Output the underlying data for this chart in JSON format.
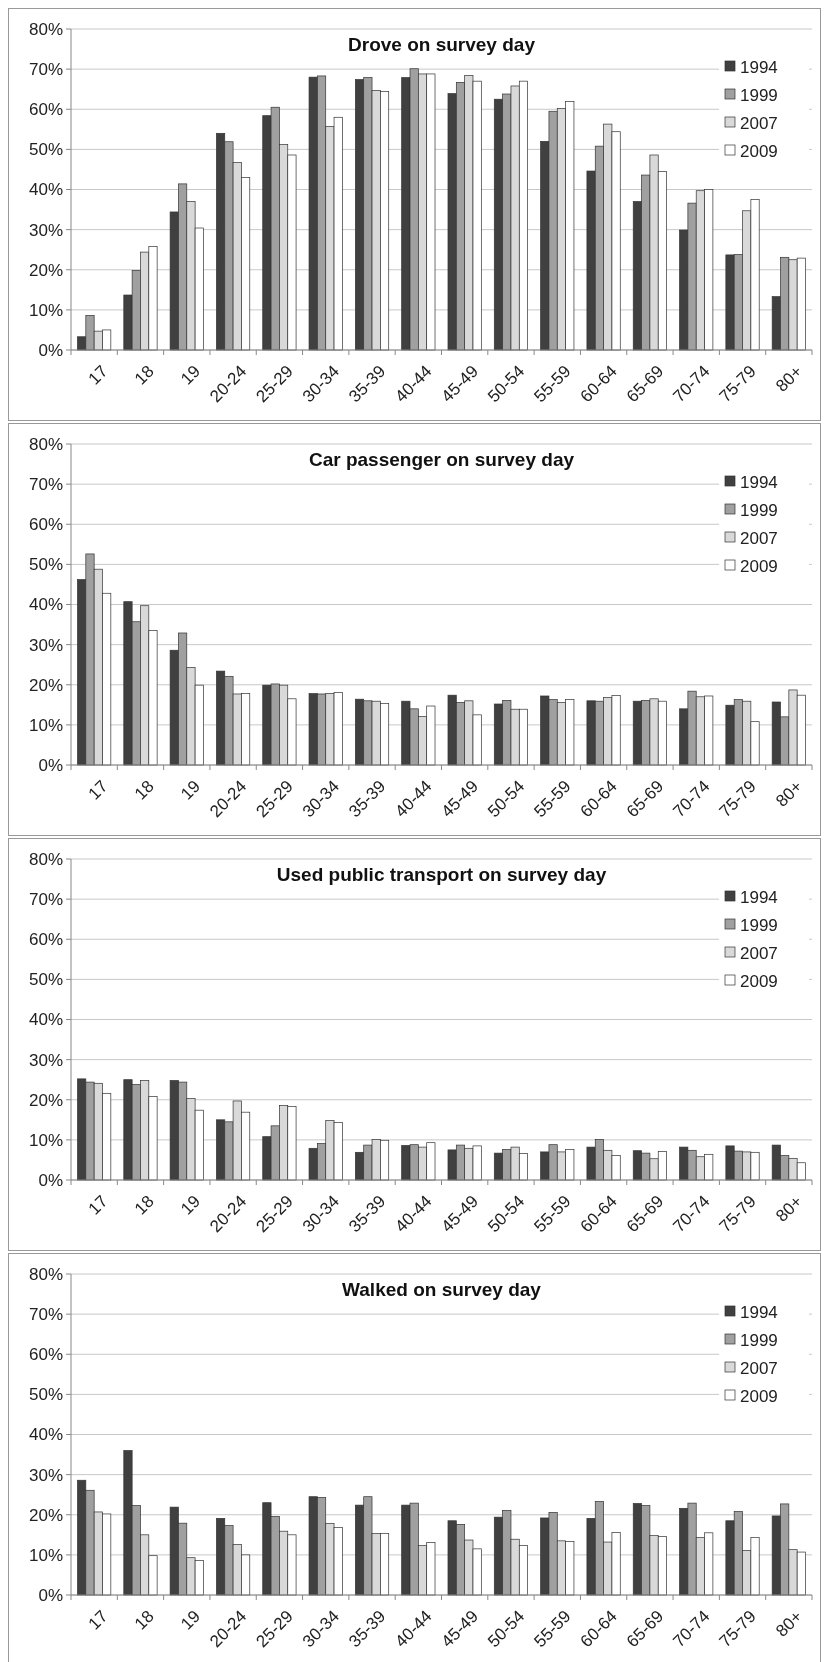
{
  "chart_data": [
    {
      "type": "bar",
      "title": "Drove on survey day",
      "categories": [
        "17",
        "18",
        "19",
        "20-24",
        "25-29",
        "30-34",
        "35-39",
        "40-44",
        "45-49",
        "50-54",
        "55-59",
        "60-64",
        "65-69",
        "70-74",
        "75-79",
        "80+"
      ],
      "ylim": [
        0,
        80
      ],
      "yticks": [
        {
          "value": 0,
          "label": "0%"
        },
        {
          "value": 10,
          "label": "10%"
        },
        {
          "value": 20,
          "label": "20%"
        },
        {
          "value": 30,
          "label": "30%"
        },
        {
          "value": 40,
          "label": "40%"
        },
        {
          "value": 50,
          "label": "50%"
        },
        {
          "value": 60,
          "label": "60%"
        },
        {
          "value": 70,
          "label": "70%"
        },
        {
          "value": 80,
          "label": "80%"
        }
      ],
      "grid": "y",
      "legend": "top right",
      "series": [
        {
          "name": "1994",
          "color": "#404040",
          "values": [
            3.3,
            13.7,
            34.4,
            54,
            58.4,
            68,
            67.4,
            67.9,
            63.9,
            62.5,
            52,
            44.6,
            37,
            29.9,
            23.7,
            13.3
          ]
        },
        {
          "name": "1999",
          "color": "#a0a0a0",
          "values": [
            8.6,
            19.8,
            41.4,
            51.9,
            60.5,
            68.3,
            67.9,
            70.1,
            66.7,
            63.8,
            59.5,
            50.8,
            43.6,
            36.6,
            23.8,
            23.1
          ]
        },
        {
          "name": "2007",
          "color": "#d9d9d9",
          "values": [
            4.7,
            24.4,
            37,
            46.7,
            51.2,
            55.7,
            64.7,
            68.8,
            68.4,
            65.8,
            60.2,
            56.3,
            48.6,
            39.7,
            34.7,
            22.5
          ]
        },
        {
          "name": "2009",
          "color": "#ffffff",
          "values": [
            5,
            25.8,
            30.4,
            43,
            48.6,
            58,
            64.4,
            68.8,
            67,
            67,
            61.9,
            54.4,
            44.5,
            40,
            37.5,
            22.9
          ]
        }
      ]
    },
    {
      "type": "bar",
      "title": "Car passenger on survey day",
      "categories": [
        "17",
        "18",
        "19",
        "20-24",
        "25-29",
        "30-34",
        "35-39",
        "40-44",
        "45-49",
        "50-54",
        "55-59",
        "60-64",
        "65-69",
        "70-74",
        "75-79",
        "80+"
      ],
      "ylim": [
        0,
        80
      ],
      "yticks": [
        {
          "value": 0,
          "label": "0%"
        },
        {
          "value": 10,
          "label": "10%"
        },
        {
          "value": 20,
          "label": "20%"
        },
        {
          "value": 30,
          "label": "30%"
        },
        {
          "value": 40,
          "label": "40%"
        },
        {
          "value": 50,
          "label": "50%"
        },
        {
          "value": 60,
          "label": "60%"
        },
        {
          "value": 70,
          "label": "70%"
        },
        {
          "value": 80,
          "label": "80%"
        }
      ],
      "grid": "y",
      "legend": "top right",
      "series": [
        {
          "name": "1994",
          "color": "#404040",
          "values": [
            46.2,
            40.7,
            28.6,
            23.4,
            19.9,
            17.8,
            16.4,
            15.9,
            17.4,
            15.2,
            17.2,
            16,
            15.9,
            14,
            14.9,
            15.7
          ]
        },
        {
          "name": "1999",
          "color": "#a0a0a0",
          "values": [
            52.6,
            35.7,
            32.9,
            22.1,
            20.2,
            17.7,
            16,
            14,
            15.6,
            16.1,
            16.3,
            15.9,
            16.1,
            18.4,
            16.3,
            12
          ]
        },
        {
          "name": "2007",
          "color": "#d9d9d9",
          "values": [
            48.8,
            39.7,
            24.3,
            17.7,
            19.9,
            17.8,
            15.9,
            12.1,
            16,
            13.9,
            15.6,
            16.8,
            16.5,
            17,
            15.9,
            18.7
          ]
        },
        {
          "name": "2009",
          "color": "#ffffff",
          "values": [
            42.8,
            33.5,
            19.9,
            17.8,
            16.5,
            18.1,
            15.3,
            14.7,
            12.5,
            13.9,
            16.3,
            17.3,
            15.9,
            17.2,
            10.8,
            17.4
          ]
        }
      ]
    },
    {
      "type": "bar",
      "title": "Used public transport on survey day",
      "categories": [
        "17",
        "18",
        "19",
        "20-24",
        "25-29",
        "30-34",
        "35-39",
        "40-44",
        "45-49",
        "50-54",
        "55-59",
        "60-64",
        "65-69",
        "70-74",
        "75-79",
        "80+"
      ],
      "ylim": [
        0,
        80
      ],
      "yticks": [
        {
          "value": 0,
          "label": "0%"
        },
        {
          "value": 10,
          "label": "10%"
        },
        {
          "value": 20,
          "label": "20%"
        },
        {
          "value": 30,
          "label": "30%"
        },
        {
          "value": 40,
          "label": "40%"
        },
        {
          "value": 50,
          "label": "50%"
        },
        {
          "value": 60,
          "label": "60%"
        },
        {
          "value": 70,
          "label": "70%"
        },
        {
          "value": 80,
          "label": "80%"
        }
      ],
      "grid": "y",
      "legend": "top right",
      "series": [
        {
          "name": "1994",
          "color": "#404040",
          "values": [
            25.2,
            25,
            24.8,
            15,
            10.8,
            7.9,
            6.9,
            8.6,
            7.5,
            6.7,
            7,
            8.2,
            7.3,
            8.2,
            8.5,
            8.7
          ]
        },
        {
          "name": "1999",
          "color": "#a0a0a0",
          "values": [
            24.4,
            23.8,
            24.4,
            14.5,
            13.5,
            9.1,
            8.7,
            8.8,
            8.7,
            7.6,
            8.8,
            10.1,
            6.7,
            7.4,
            7.2,
            6.1
          ]
        },
        {
          "name": "2007",
          "color": "#d9d9d9",
          "values": [
            24.1,
            24.8,
            20.3,
            19.7,
            18.6,
            14.8,
            10.1,
            8.2,
            7.9,
            8.2,
            7,
            7.4,
            5.3,
            5.8,
            7,
            5.4
          ]
        },
        {
          "name": "2009",
          "color": "#ffffff",
          "values": [
            21.6,
            20.8,
            17.4,
            16.9,
            18.3,
            14.3,
            9.9,
            9.3,
            8.5,
            6.6,
            7.6,
            6.1,
            7.1,
            6.4,
            6.9,
            4.3
          ]
        }
      ]
    },
    {
      "type": "bar",
      "title": "Walked on survey day",
      "categories": [
        "17",
        "18",
        "19",
        "20-24",
        "25-29",
        "30-34",
        "35-39",
        "40-44",
        "45-49",
        "50-54",
        "55-59",
        "60-64",
        "65-69",
        "70-74",
        "75-79",
        "80+"
      ],
      "ylim": [
        0,
        80
      ],
      "yticks": [
        {
          "value": 0,
          "label": "0%"
        },
        {
          "value": 10,
          "label": "10%"
        },
        {
          "value": 20,
          "label": "20%"
        },
        {
          "value": 30,
          "label": "30%"
        },
        {
          "value": 40,
          "label": "40%"
        },
        {
          "value": 50,
          "label": "50%"
        },
        {
          "value": 60,
          "label": "60%"
        },
        {
          "value": 70,
          "label": "70%"
        },
        {
          "value": 80,
          "label": "80%"
        }
      ],
      "grid": "y",
      "legend": "top right",
      "series": [
        {
          "name": "1994",
          "color": "#404040",
          "values": [
            28.6,
            36,
            21.9,
            19.1,
            23,
            24.5,
            22.4,
            22.4,
            18.5,
            19.4,
            19.2,
            19.1,
            22.8,
            21.6,
            18.5,
            19.7
          ]
        },
        {
          "name": "1999",
          "color": "#a0a0a0",
          "values": [
            26.1,
            22.3,
            17.9,
            17.3,
            19.6,
            24.3,
            24.5,
            22.9,
            17.6,
            21.1,
            20.6,
            23.3,
            22.3,
            22.9,
            20.8,
            22.7
          ]
        },
        {
          "name": "2007",
          "color": "#d9d9d9",
          "values": [
            20.7,
            15,
            9.3,
            12.6,
            15.9,
            17.8,
            15.3,
            12.3,
            13.7,
            13.9,
            13.5,
            13.2,
            14.8,
            14.3,
            11.1,
            11.3
          ]
        },
        {
          "name": "2009",
          "color": "#ffffff",
          "values": [
            20.2,
            9.8,
            8.6,
            10,
            15,
            16.8,
            15.3,
            13.1,
            11.5,
            12.3,
            13.3,
            15.6,
            14.6,
            15.5,
            14.3,
            10.7
          ]
        }
      ]
    }
  ]
}
